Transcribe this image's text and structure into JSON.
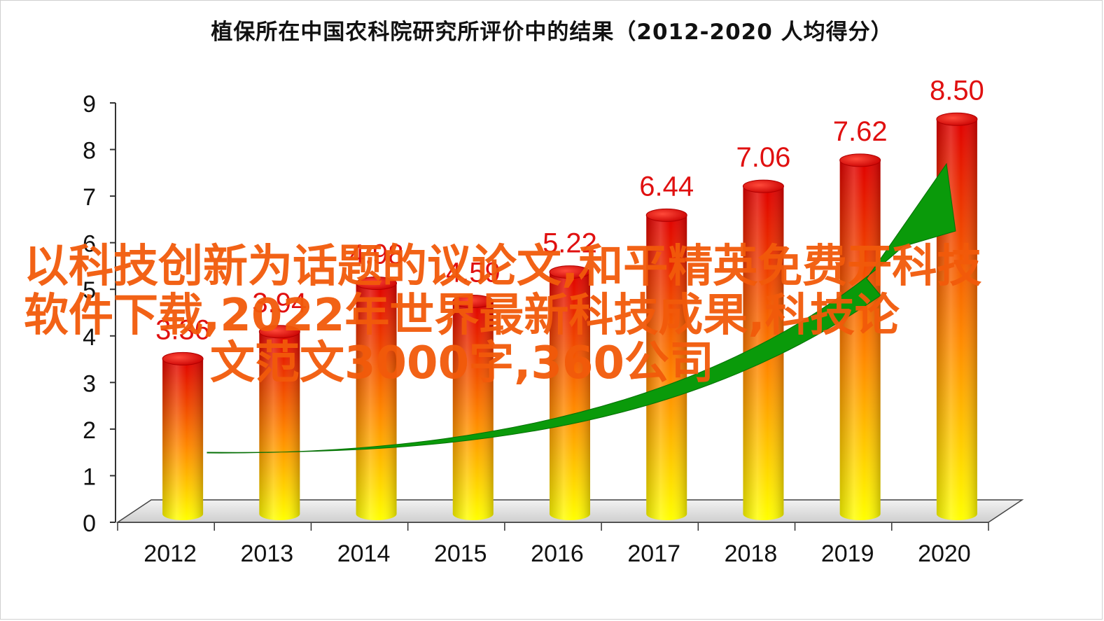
{
  "title": "植保所在中国农科院研究所评价中的结果（2012-2020 人均得分）",
  "chart_data": {
    "type": "bar",
    "title": "植保所在中国农科院研究所评价中的结果（2012-2020 人均得分）",
    "categories": [
      "2012",
      "2013",
      "2014",
      "2015",
      "2016",
      "2017",
      "2018",
      "2019",
      "2020"
    ],
    "values": [
      3.36,
      3.94,
      4.98,
      4.59,
      5.22,
      6.44,
      7.06,
      7.62,
      8.5
    ],
    "value_labels": [
      "3.36",
      "3.94",
      "4.98",
      "4.59",
      "5.22",
      "6.44",
      "7.06",
      "7.62",
      "8.50"
    ],
    "y_ticks": [
      "0",
      "1",
      "2",
      "3",
      "4",
      "5",
      "6",
      "7",
      "8",
      "9"
    ],
    "ylim": [
      0,
      9
    ],
    "xlabel": "",
    "ylabel": "",
    "grid": false,
    "legend": "none",
    "style": "3d-cylinder",
    "colors": {
      "bar_top": "#e00000",
      "bar_bottom": "#ffff00",
      "label": "#e01010",
      "arrow": "#0a9a0a",
      "floor": "#dcdcdc"
    },
    "annotations": [
      {
        "type": "arrow",
        "color": "green",
        "direction": "upward-trend"
      }
    ]
  },
  "overlay_text": {
    "line1": "以科技创新为话题的议论文,和平精英免费开科技",
    "line2": "软件下载,2022年世界最新科技成果,科技论",
    "line3": "文范文3000字,360公司"
  }
}
